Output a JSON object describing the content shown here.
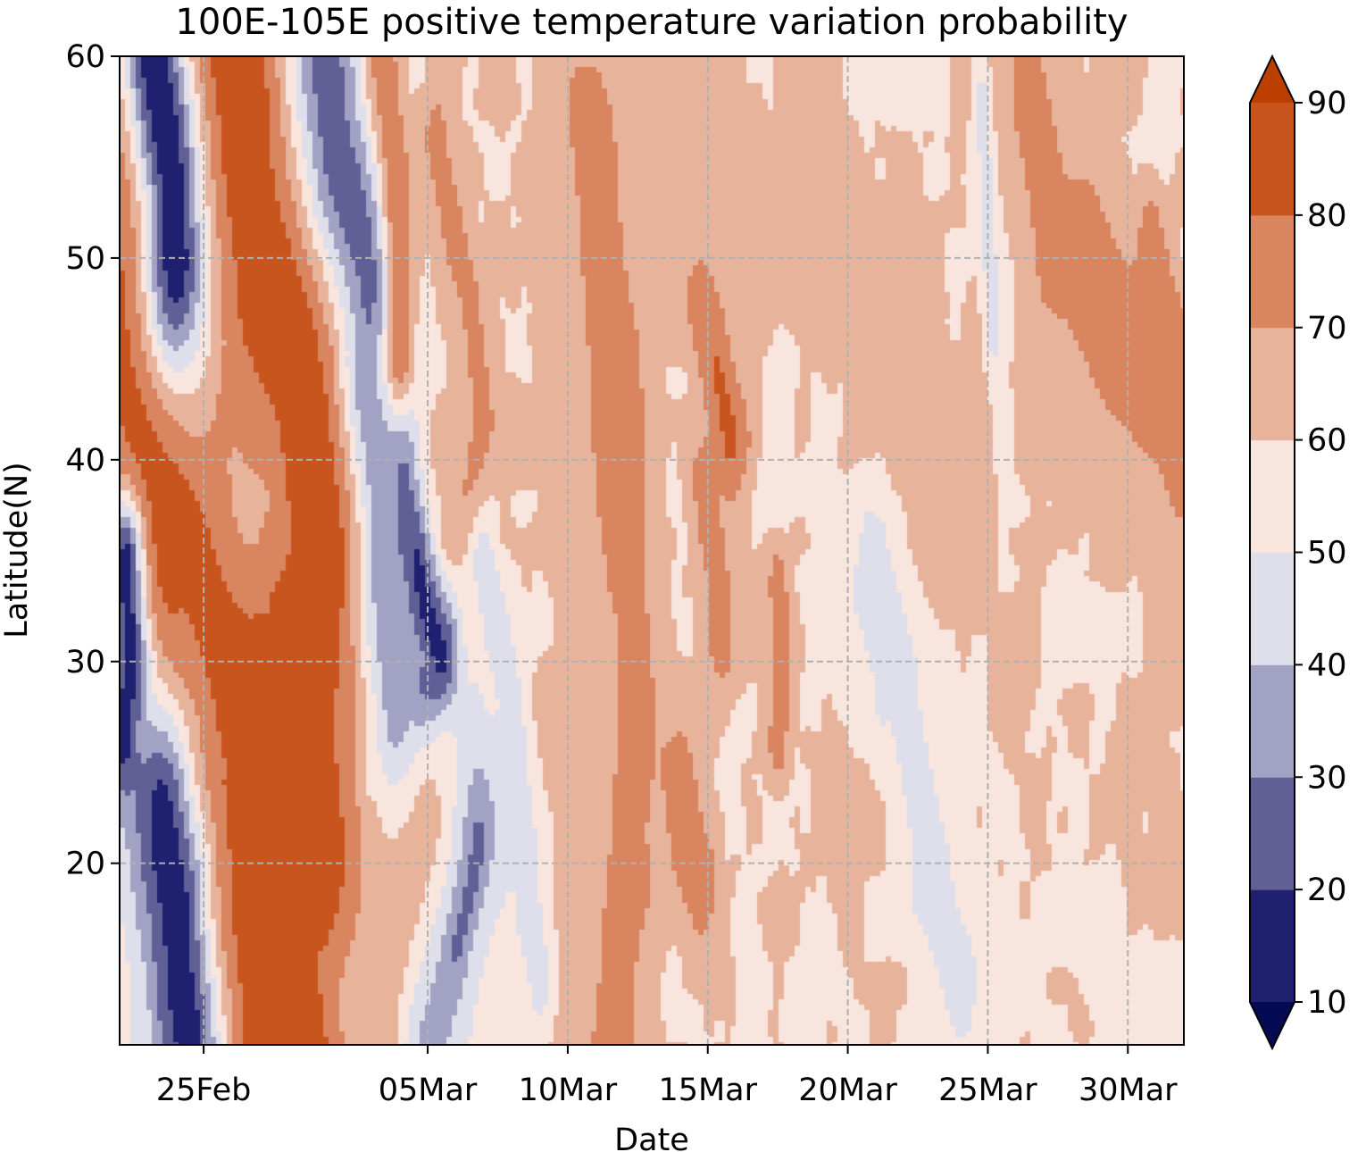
{
  "chart_data": {
    "type": "heatmap",
    "title": "100E-105E positive temperature variation probability",
    "xlabel": "Date",
    "ylabel": "Latitude(N)",
    "x_unit": "day",
    "x_start": "22Feb",
    "x_range_days": [
      22,
      60
    ],
    "x_ticks": [
      {
        "label": "25Feb",
        "day": 25
      },
      {
        "label": "05Mar",
        "day": 33
      },
      {
        "label": "10Mar",
        "day": 38
      },
      {
        "label": "15Mar",
        "day": 43
      },
      {
        "label": "20Mar",
        "day": 48
      },
      {
        "label": "25Mar",
        "day": 53
      },
      {
        "label": "30Mar",
        "day": 58
      }
    ],
    "ylim": [
      11,
      60
    ],
    "y_ticks": [
      {
        "label": "20",
        "value": 20
      },
      {
        "label": "30",
        "value": 30
      },
      {
        "label": "40",
        "value": 40
      },
      {
        "label": "50",
        "value": 50
      },
      {
        "label": "60",
        "value": 60
      }
    ],
    "grid": true,
    "colorbar": {
      "levels": [
        10,
        20,
        30,
        40,
        50,
        60,
        70,
        80,
        90
      ],
      "tick_labels": [
        "10",
        "20",
        "30",
        "40",
        "50",
        "60",
        "70",
        "80",
        "90"
      ],
      "extend": "both",
      "colors": [
        "#050a55",
        "#1f2070",
        "#606096",
        "#a2a2c4",
        "#dedfea",
        "#f8e5de",
        "#e8b39b",
        "#d98560",
        "#c8551e",
        "#bb3f00"
      ]
    },
    "features": [
      {
        "kind": "band",
        "value": 85,
        "points": [
          [
            22.3,
            60
          ],
          [
            22.3,
            45
          ],
          [
            23.2,
            40
          ],
          [
            24.5,
            35
          ],
          [
            26,
            28
          ],
          [
            27,
            25
          ],
          [
            29,
            22
          ],
          [
            30.5,
            12
          ],
          [
            30.8,
            11
          ],
          [
            26,
            11
          ],
          [
            25.5,
            15
          ],
          [
            25.5,
            22
          ],
          [
            24.5,
            25
          ],
          [
            24,
            30
          ],
          [
            23.5,
            35
          ],
          [
            22.8,
            40
          ],
          [
            22.5,
            45
          ],
          [
            22.5,
            50
          ],
          [
            24,
            55
          ],
          [
            25,
            60
          ]
        ],
        "width": 2.2
      },
      {
        "kind": "band",
        "value": 88,
        "points": [
          [
            26.3,
            60
          ],
          [
            26.5,
            55
          ],
          [
            27,
            50
          ],
          [
            28.5,
            45
          ],
          [
            29,
            40
          ],
          [
            29.5,
            35
          ],
          [
            28.5,
            30
          ],
          [
            28,
            25
          ],
          [
            27.5,
            20
          ],
          [
            26.5,
            15
          ],
          [
            26.5,
            11
          ]
        ],
        "width": 2.6
      },
      {
        "kind": "band",
        "value": 12,
        "points": [
          [
            23.2,
            60
          ],
          [
            23.8,
            55
          ],
          [
            24,
            50
          ]
        ],
        "width": 1.6
      },
      {
        "kind": "band",
        "value": 14,
        "points": [
          [
            23.5,
            22
          ],
          [
            24,
            18
          ],
          [
            24.2,
            14
          ],
          [
            24.5,
            11
          ]
        ],
        "width": 1.8
      },
      {
        "kind": "band",
        "value": 16,
        "points": [
          [
            22.2,
            35
          ],
          [
            22.4,
            30
          ],
          [
            22.1,
            26
          ]
        ],
        "width": 0.9
      },
      {
        "kind": "band",
        "value": 24,
        "points": [
          [
            29.3,
            60
          ],
          [
            29.8,
            55
          ],
          [
            30.5,
            52
          ],
          [
            31,
            50
          ],
          [
            31.3,
            47
          ]
        ],
        "width": 1.6
      },
      {
        "kind": "band",
        "value": 12,
        "points": [
          [
            31.5,
            47
          ],
          [
            31.8,
            42
          ],
          [
            32,
            38
          ],
          [
            32.5,
            35
          ],
          [
            33,
            32
          ],
          [
            33.5,
            30
          ],
          [
            32.8,
            28
          ]
        ],
        "width": 0.85
      },
      {
        "kind": "band",
        "value": 32,
        "points": [
          [
            31.2,
            43
          ],
          [
            31.5,
            38
          ],
          [
            31.5,
            34
          ],
          [
            31.8,
            30
          ],
          [
            32,
            27
          ]
        ],
        "width": 1.4
      },
      {
        "kind": "band",
        "value": 35,
        "points": [
          [
            33,
            11
          ],
          [
            33.5,
            14
          ],
          [
            34,
            18
          ],
          [
            34.8,
            22
          ]
        ],
        "width": 1.7
      },
      {
        "kind": "band",
        "value": 25,
        "points": [
          [
            34,
            16
          ],
          [
            34.5,
            19
          ],
          [
            34.8,
            21
          ]
        ],
        "width": 0.5
      },
      {
        "kind": "band",
        "value": 77,
        "points": [
          [
            31.5,
            59
          ],
          [
            31.8,
            55
          ],
          [
            32,
            50
          ],
          [
            32,
            45
          ]
        ],
        "width": 0.9
      },
      {
        "kind": "band",
        "value": 73,
        "points": [
          [
            33.3,
            56
          ],
          [
            33.8,
            52
          ],
          [
            34.5,
            48
          ],
          [
            35,
            42
          ],
          [
            34.5,
            38
          ]
        ],
        "width": 0.9
      },
      {
        "kind": "band",
        "value": 83,
        "points": [
          [
            38.8,
            56
          ],
          [
            39.2,
            51
          ],
          [
            39.6,
            46
          ],
          [
            39.8,
            42
          ],
          [
            39.3,
            38
          ],
          [
            39.5,
            34
          ]
        ],
        "width": 0.9
      },
      {
        "kind": "band",
        "value": 75,
        "points": [
          [
            38.8,
            54
          ],
          [
            39.5,
            45
          ],
          [
            40,
            35
          ],
          [
            40.2,
            28
          ],
          [
            40,
            20
          ],
          [
            39.5,
            12
          ]
        ],
        "width": 1.9
      },
      {
        "kind": "band",
        "value": 65,
        "points": [
          [
            37.5,
            52
          ],
          [
            38,
            40
          ],
          [
            39,
            30
          ],
          [
            38.5,
            20
          ],
          [
            37.8,
            12
          ]
        ],
        "width": 1.4
      },
      {
        "kind": "band",
        "value": 83,
        "points": [
          [
            42.8,
            48
          ],
          [
            43.3,
            45
          ],
          [
            43.8,
            41
          ]
        ],
        "width": 0.9
      },
      {
        "kind": "band",
        "value": 75,
        "points": [
          [
            42.8,
            39
          ],
          [
            43.3,
            35
          ],
          [
            43.5,
            31
          ]
        ],
        "width": 0.8
      },
      {
        "kind": "band",
        "value": 75,
        "points": [
          [
            45.5,
            34
          ],
          [
            45.7,
            30
          ],
          [
            45.5,
            26
          ]
        ],
        "width": 0.7
      },
      {
        "kind": "band",
        "value": 75,
        "points": [
          [
            42,
            24
          ],
          [
            42.3,
            21
          ],
          [
            42.8,
            19
          ]
        ],
        "width": 1.0
      },
      {
        "kind": "band",
        "value": 67,
        "points": [
          [
            41,
            55
          ],
          [
            44,
            52
          ],
          [
            47,
            52
          ],
          [
            49,
            48
          ],
          [
            50,
            45
          ],
          [
            51,
            42
          ],
          [
            52,
            38
          ]
        ],
        "width": 1.6
      },
      {
        "kind": "band",
        "value": 67,
        "points": [
          [
            54,
            60
          ],
          [
            55,
            55
          ],
          [
            56,
            50
          ],
          [
            57,
            45
          ],
          [
            58,
            42
          ],
          [
            60,
            40
          ]
        ],
        "width": 2.4
      },
      {
        "kind": "band",
        "value": 77,
        "points": [
          [
            54.5,
            58
          ],
          [
            55,
            54
          ],
          [
            55.3,
            50
          ]
        ],
        "width": 0.8
      },
      {
        "kind": "band",
        "value": 77,
        "points": [
          [
            56.5,
            50
          ],
          [
            57.5,
            47
          ],
          [
            58.8,
            45
          ],
          [
            60,
            43
          ]
        ],
        "width": 1.2
      },
      {
        "kind": "band",
        "value": 77,
        "points": [
          [
            58.8,
            51
          ],
          [
            59.5,
            46
          ],
          [
            60,
            40
          ]
        ],
        "width": 0.7
      },
      {
        "kind": "band",
        "value": 46,
        "points": [
          [
            35,
            35
          ],
          [
            36,
            28
          ],
          [
            36.5,
            20
          ],
          [
            37,
            14
          ]
        ],
        "width": 0.8
      },
      {
        "kind": "band",
        "value": 46,
        "points": [
          [
            49,
            34
          ],
          [
            50,
            28
          ],
          [
            51,
            20
          ],
          [
            52,
            14
          ]
        ],
        "width": 1.3
      },
      {
        "kind": "band",
        "value": 46,
        "points": [
          [
            52.8,
            58
          ],
          [
            53,
            52
          ],
          [
            53.2,
            46
          ]
        ],
        "width": 0.5
      },
      {
        "kind": "band",
        "value": 63,
        "points": [
          [
            30.5,
            13
          ],
          [
            32,
            18
          ],
          [
            33,
            22
          ]
        ],
        "width": 1.4
      }
    ]
  }
}
